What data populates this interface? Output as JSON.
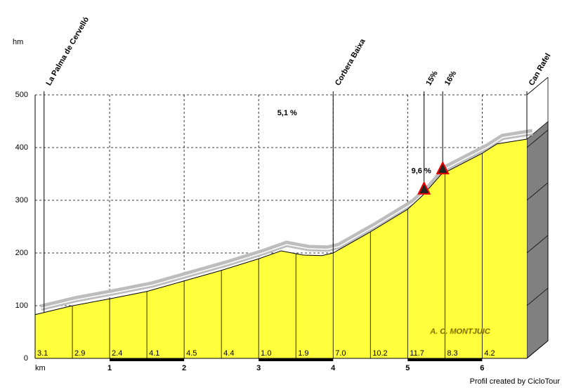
{
  "chart_data": {
    "type": "area",
    "y_label": "hm",
    "x_label": "km",
    "x": [
      0,
      0.47,
      1,
      1.5,
      2,
      2.5,
      3,
      3.3,
      3.6,
      3.85,
      4,
      4.5,
      5,
      5.2,
      5.45,
      6,
      6.2,
      6.6
    ],
    "values": [
      83,
      99,
      113,
      127,
      147,
      167,
      189,
      204,
      196,
      195,
      200,
      240,
      283,
      309,
      349,
      389,
      407,
      416
    ],
    "color": "#ffff3c",
    "xlim": [
      0,
      6.6
    ],
    "xticks": [
      1,
      2,
      3,
      4,
      5,
      6
    ],
    "ylim": [
      0,
      500
    ],
    "yticks": [
      0,
      100,
      200,
      300,
      400,
      500
    ],
    "grid": true,
    "segments": {
      "starts": [
        0,
        0.5,
        1,
        1.5,
        2,
        2.5,
        3,
        3.5,
        4,
        4.5,
        5,
        5.5,
        6
      ],
      "grades": [
        3.1,
        2.9,
        2.4,
        4.1,
        4.5,
        4.4,
        {
          "value": 1,
          "label": "1.0"
        },
        1.9,
        {
          "value": 7,
          "label": "7.0"
        },
        10.2,
        11.7,
        8.3,
        4.2
      ]
    },
    "markers": [
      {
        "label": "La Palma de Cervelló",
        "x": 0.12
      },
      {
        "label": "Corbera Baixa",
        "x": 4.0
      },
      {
        "label": "15%",
        "x": 5.22
      },
      {
        "label": "16%",
        "x": 5.47
      },
      {
        "label": "Can Rafel",
        "x": 6.6
      }
    ],
    "steep_x": [
      5.22,
      5.47
    ],
    "annotations": [
      {
        "text": "5,1 %",
        "x": 3.25,
        "y": 465
      },
      {
        "text": "9,6 %",
        "x": 5.05,
        "y": 355
      }
    ],
    "watermark": "A. C. MONTJUIC",
    "credit": "Profil created by CicloTour"
  }
}
